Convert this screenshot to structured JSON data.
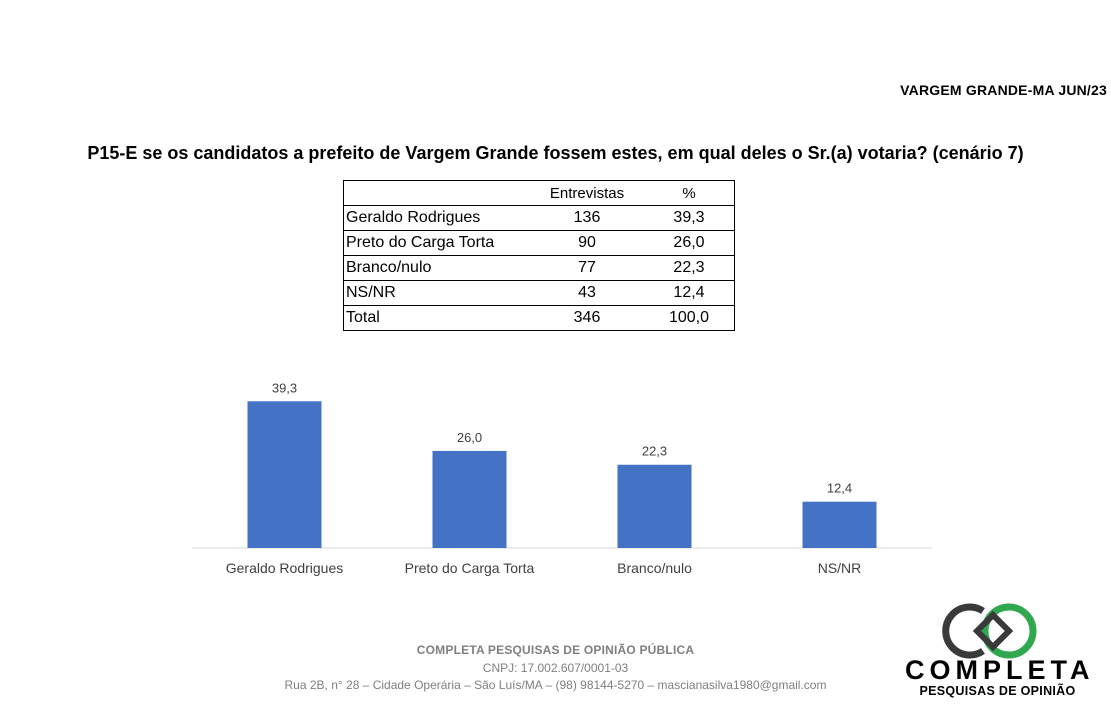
{
  "header": {
    "location_date": "VARGEM GRANDE-MA JUN/23"
  },
  "question": "P15-E se os candidatos a prefeito de Vargem Grande fossem estes, em qual deles o Sr.(a) votaria? (cenário 7)",
  "table": {
    "columns": [
      "",
      "Entrevistas",
      "%"
    ],
    "rows": [
      {
        "name": "Geraldo Rodrigues",
        "count": "136",
        "pct": "39,3"
      },
      {
        "name": "Preto do Carga Torta",
        "count": "90",
        "pct": "26,0"
      },
      {
        "name": "Branco/nulo",
        "count": "77",
        "pct": "22,3"
      },
      {
        "name": "NS/NR",
        "count": "43",
        "pct": "12,4"
      },
      {
        "name": "Total",
        "count": "346",
        "pct": "100,0"
      }
    ]
  },
  "chart_data": {
    "type": "bar",
    "categories": [
      "Geraldo Rodrigues",
      "Preto do Carga Torta",
      "Branco/nulo",
      "NS/NR"
    ],
    "values": [
      39.3,
      26.0,
      22.3,
      12.4
    ],
    "data_labels": [
      "39,3",
      "26,0",
      "22,3",
      "12,4"
    ],
    "title": "",
    "xlabel": "",
    "ylabel": "",
    "ylim": [
      0,
      45
    ],
    "grid": false,
    "bar_color": "#4472c4"
  },
  "footer": {
    "company": "COMPLETA PESQUISAS DE OPINIÃO PÚBLICA",
    "cnpj": "CNPJ: 17.002.607/0001-03",
    "address": "Rua 2B, n° 28 – Cidade Operária – São Luís/MA – (98) 98144-5270 – mascianasilva1980@gmail.com"
  },
  "logo": {
    "name": "COMPLETA",
    "subtitle": "PESQUISAS DE OPINIÃO",
    "colors": {
      "dark": "#3a3a3a",
      "green": "#2fa84f"
    }
  }
}
